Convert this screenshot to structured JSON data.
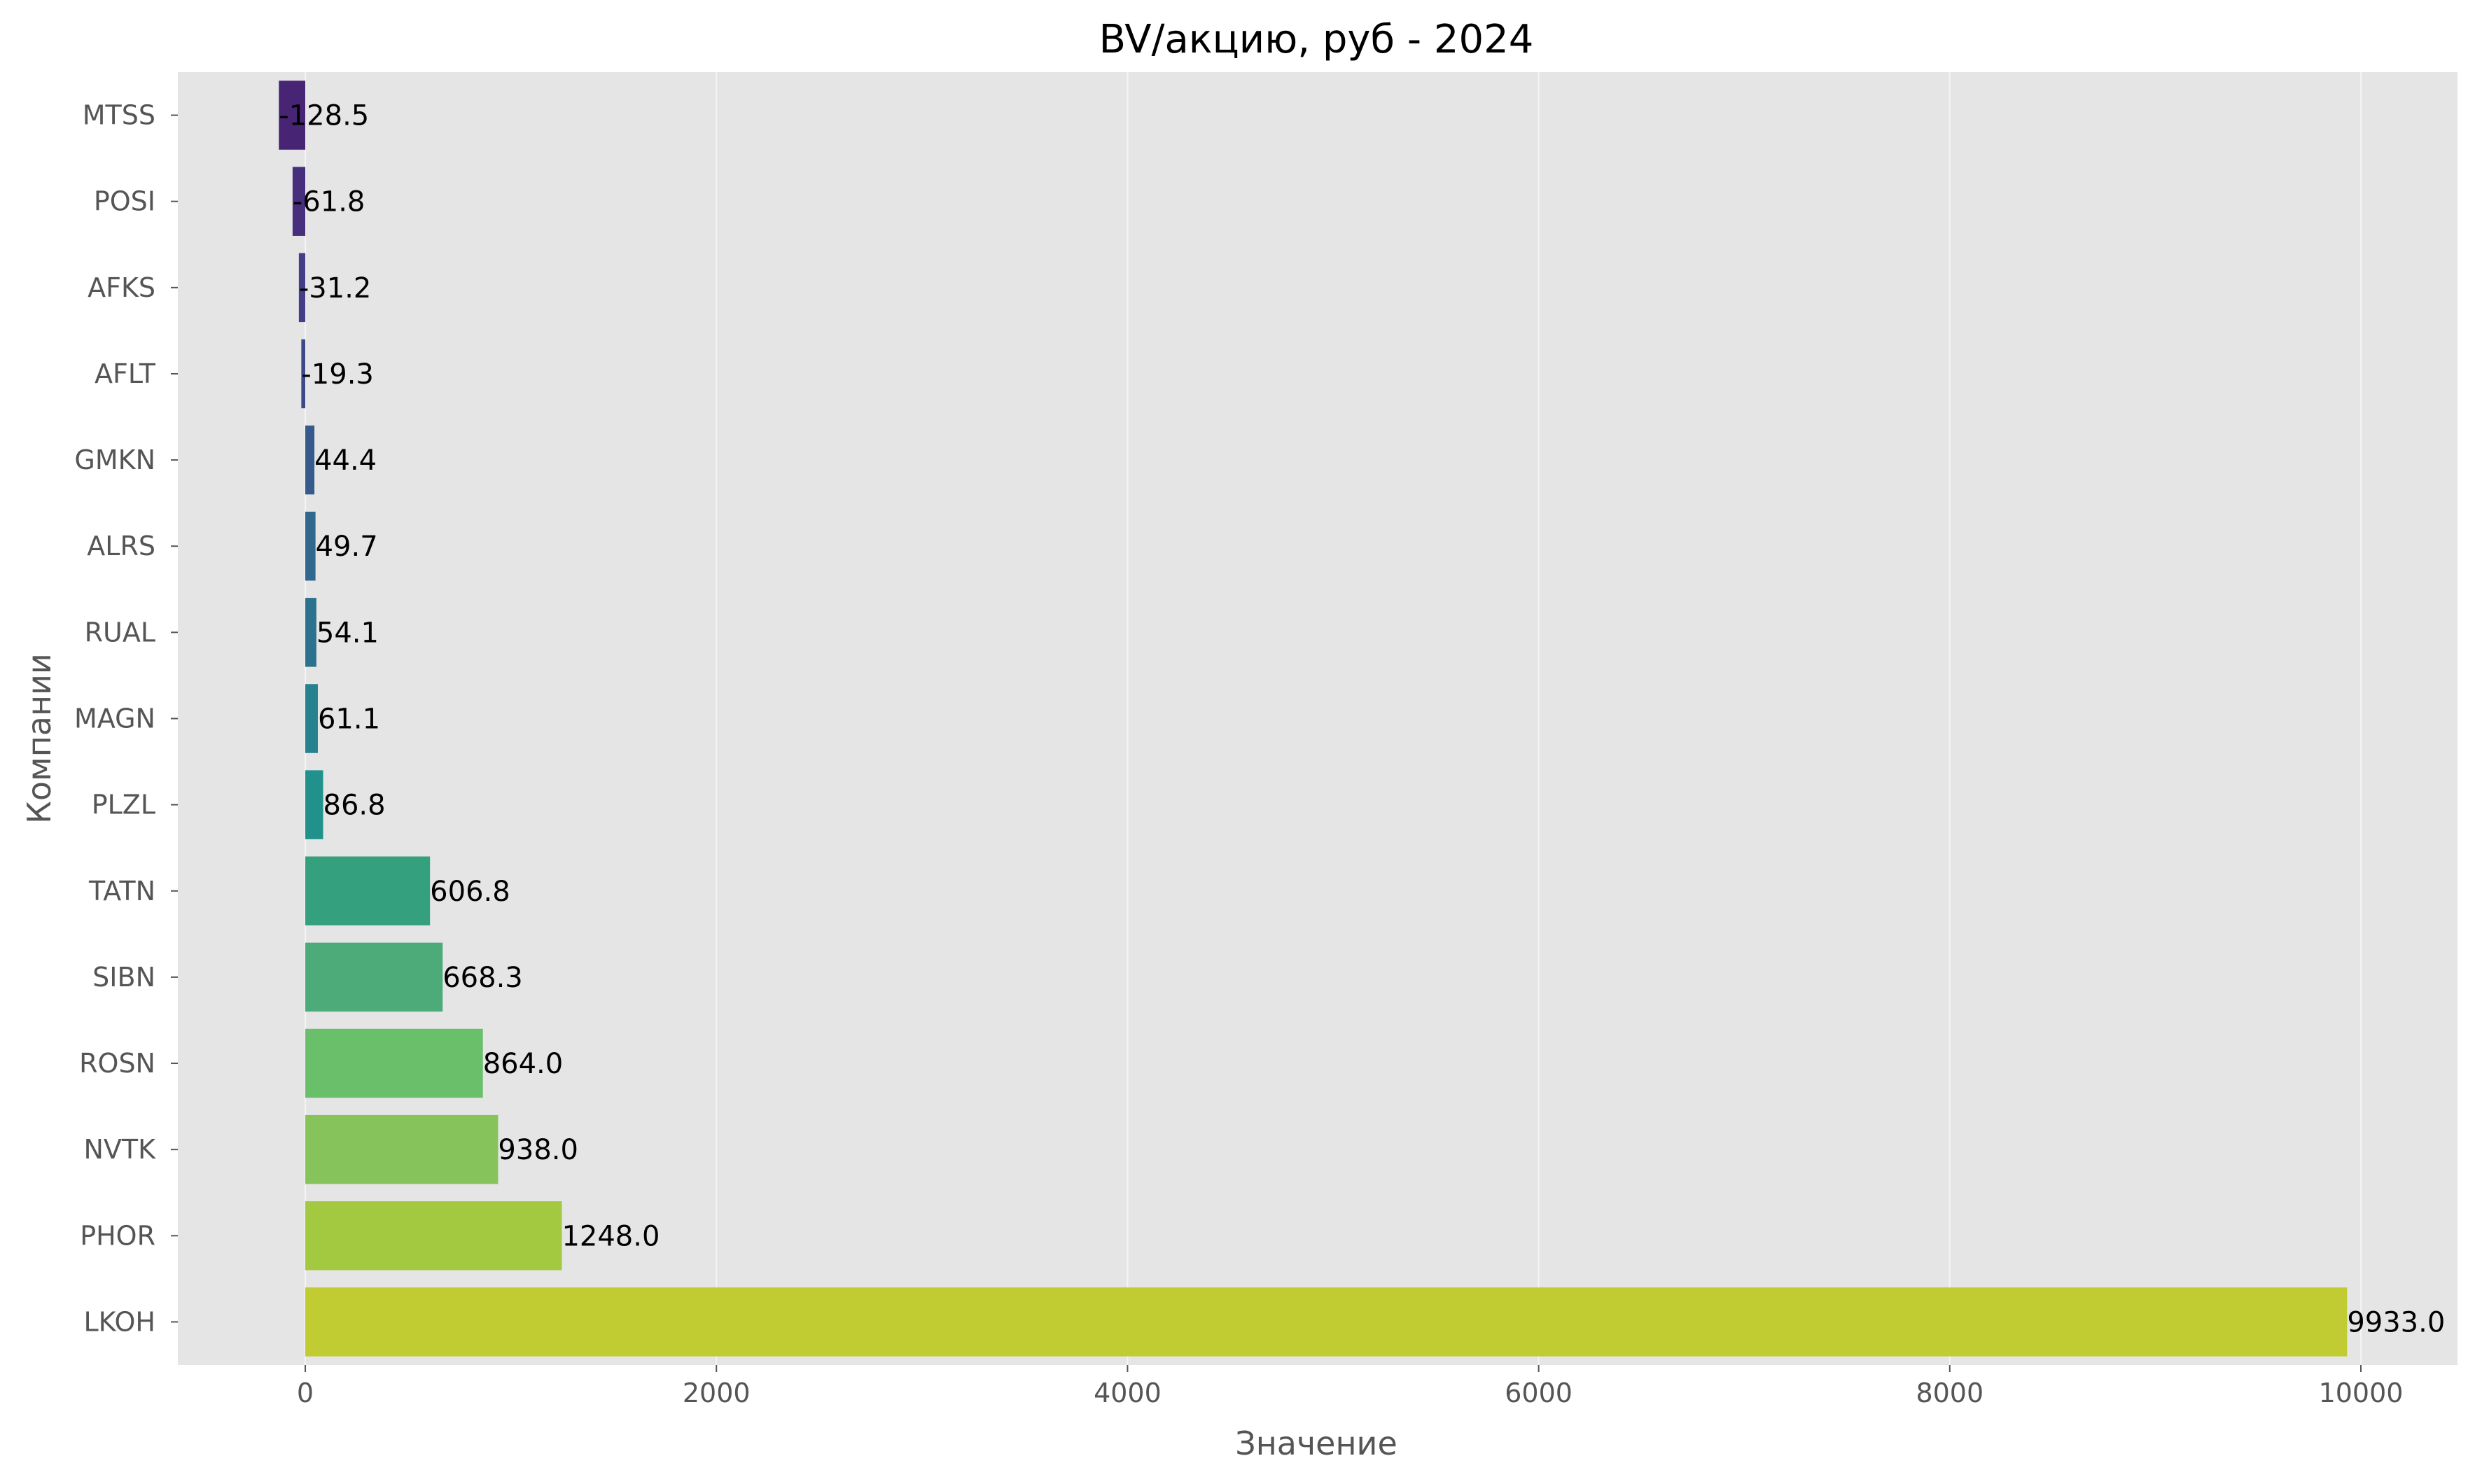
{
  "chart_data": {
    "type": "bar",
    "orientation": "horizontal",
    "title": "BV/акцию, руб - 2024",
    "xlabel": "Значение",
    "ylabel": "Компании",
    "categories": [
      "MTSS",
      "POSI",
      "AFKS",
      "AFLT",
      "GMKN",
      "ALRS",
      "RUAL",
      "MAGN",
      "PLZL",
      "TATN",
      "SIBN",
      "ROSN",
      "NVTK",
      "PHOR",
      "LKOH"
    ],
    "values": [
      -128.5,
      -61.8,
      -31.2,
      -19.3,
      44.4,
      49.7,
      54.1,
      61.1,
      86.8,
      606.8,
      668.3,
      864.0,
      938.0,
      1248.0,
      9933.0
    ],
    "data_labels": [
      "-128.5",
      "-61.8",
      "-31.2",
      "-19.3",
      "44.4",
      "49.7",
      "54.1",
      "61.1",
      "86.8",
      "606.8",
      "668.3",
      "864.0",
      "938.0",
      "1248.0",
      "9933.0"
    ],
    "colors": [
      "#482475",
      "#472f7d",
      "#433e85",
      "#3e4989",
      "#375a8c",
      "#31688e",
      "#2c728e",
      "#26828e",
      "#21918c",
      "#35a07e",
      "#4cab78",
      "#6ac06a",
      "#86c45b",
      "#a2c93f",
      "#c1cc33"
    ],
    "xlim": [
      -620,
      10470
    ],
    "xticks": [
      0,
      2000,
      4000,
      6000,
      8000,
      10000
    ],
    "xtick_labels": [
      "0",
      "2000",
      "4000",
      "6000",
      "8000",
      "10000"
    ],
    "grid": true,
    "background": "#e5e5e5"
  }
}
